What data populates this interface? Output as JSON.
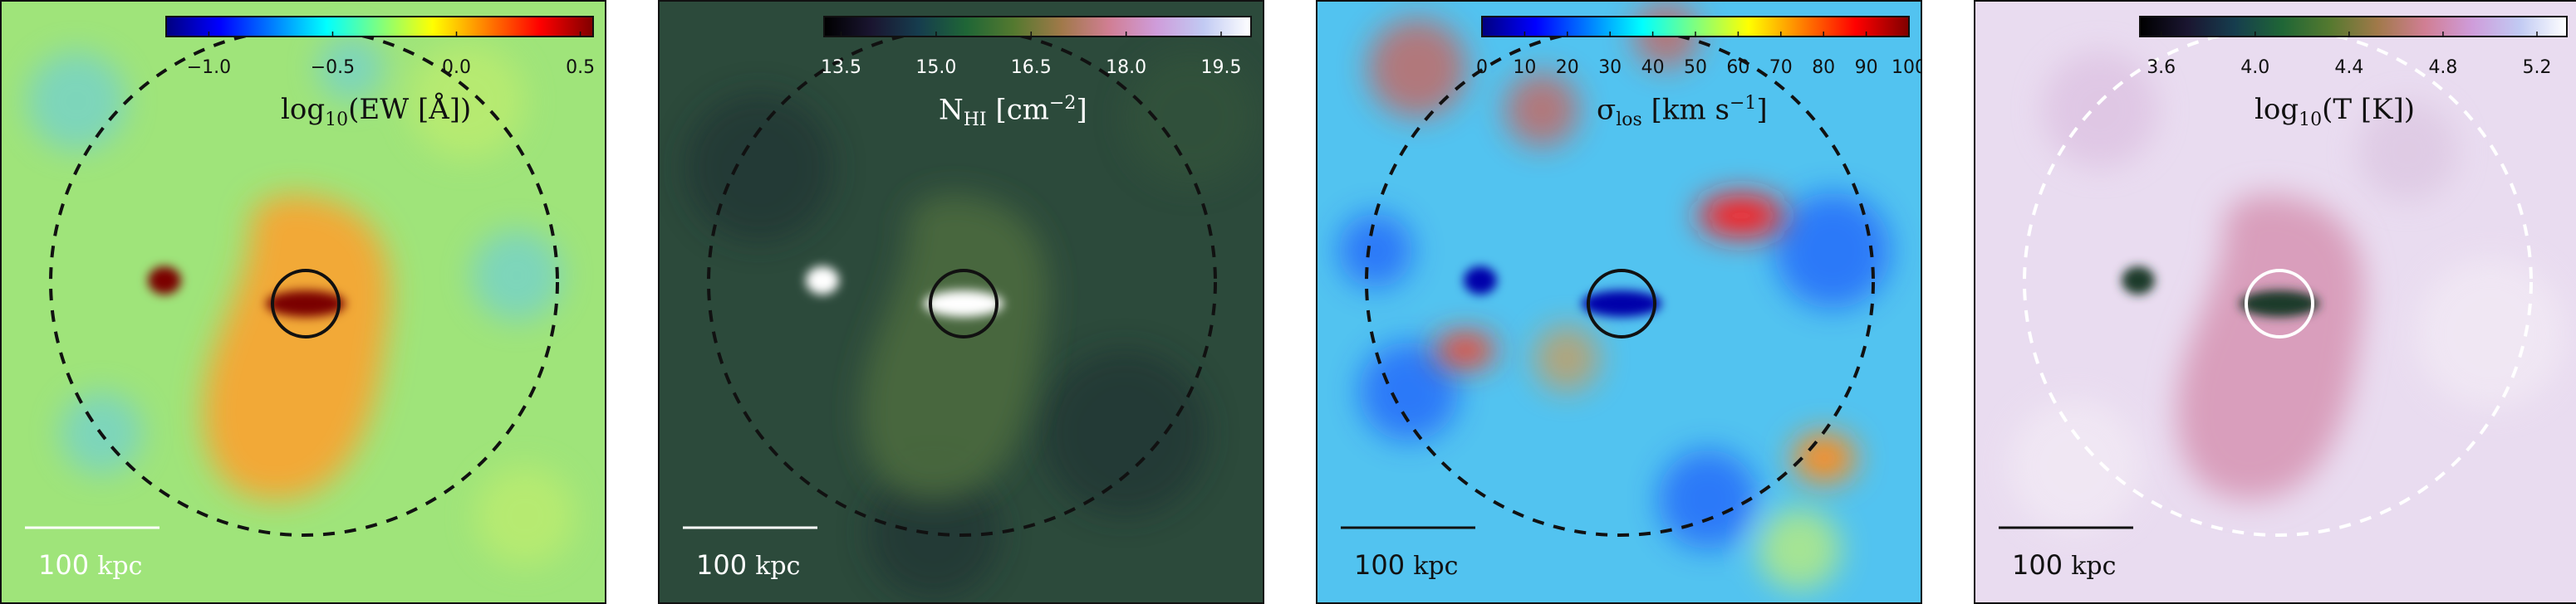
{
  "panels": [
    {
      "id": "ew",
      "quantity_label": "log10(EW [Å])",
      "qty": {
        "pre": "log",
        "sub": "10",
        "post": "(EW [Å])"
      },
      "colormap": "jet",
      "colorbar_ticks": [
        "−1.0",
        "−0.5",
        "0.0",
        "0.5"
      ],
      "scale_bar": {
        "value": "100",
        "unit": "kpc"
      },
      "colors": {
        "background": "#9fe47a",
        "blob": "#f7a534",
        "clump": "#7a0000",
        "line": "#111111",
        "bar": "#ffffff",
        "text": "#111111",
        "scale_text": "#ffffff"
      }
    },
    {
      "id": "nhi",
      "quantity_label": "N_HI [cm^-2]",
      "qty": {
        "pre": "N",
        "sub": "HI",
        "post": " [cm",
        "sup": "−2",
        "tail": "]"
      },
      "colormap": "cubehelix",
      "colorbar_ticks": [
        "13.5",
        "15.0",
        "16.5",
        "18.0",
        "19.5"
      ],
      "scale_bar": {
        "value": "100",
        "unit": "kpc"
      },
      "colors": {
        "background": "#2c4a3b",
        "blob": "#4a6a3e",
        "clump": "#ffffff",
        "line": "#111111",
        "bar": "#ffffff",
        "text": "#ffffff",
        "scale_text": "#ffffff"
      }
    },
    {
      "id": "sigma",
      "quantity_label": "σ_los [km s^-1]",
      "qty": {
        "pre": "σ",
        "sub": "los",
        "post": " [km s",
        "sup": "−1",
        "tail": "]"
      },
      "colormap": "jet",
      "colorbar_ticks": [
        "0",
        "10",
        "20",
        "30",
        "40",
        "50",
        "60",
        "70",
        "80",
        "90",
        "100"
      ],
      "scale_bar": {
        "value": "100",
        "unit": "kpc"
      },
      "colors": {
        "background": "#52c3f0",
        "blob": "#ff5a1a",
        "clump": "#0000aa",
        "line": "#111111",
        "bar": "#111111",
        "text": "#111111",
        "scale_text": "#111111"
      }
    },
    {
      "id": "temp",
      "quantity_label": "log10(T [K])",
      "qty": {
        "pre": "log",
        "sub": "10",
        "post": "(T [K])"
      },
      "colormap": "cubehelix",
      "colorbar_ticks": [
        "3.6",
        "4.0",
        "4.4",
        "4.8",
        "5.2"
      ],
      "scale_bar": {
        "value": "100",
        "unit": "kpc"
      },
      "colors": {
        "background": "#e9dcf0",
        "blob": "#d89bb8",
        "clump": "#1d3a2a",
        "line": "#ffffff",
        "bar": "#111111",
        "text": "#111111",
        "scale_text": "#111111"
      }
    }
  ]
}
